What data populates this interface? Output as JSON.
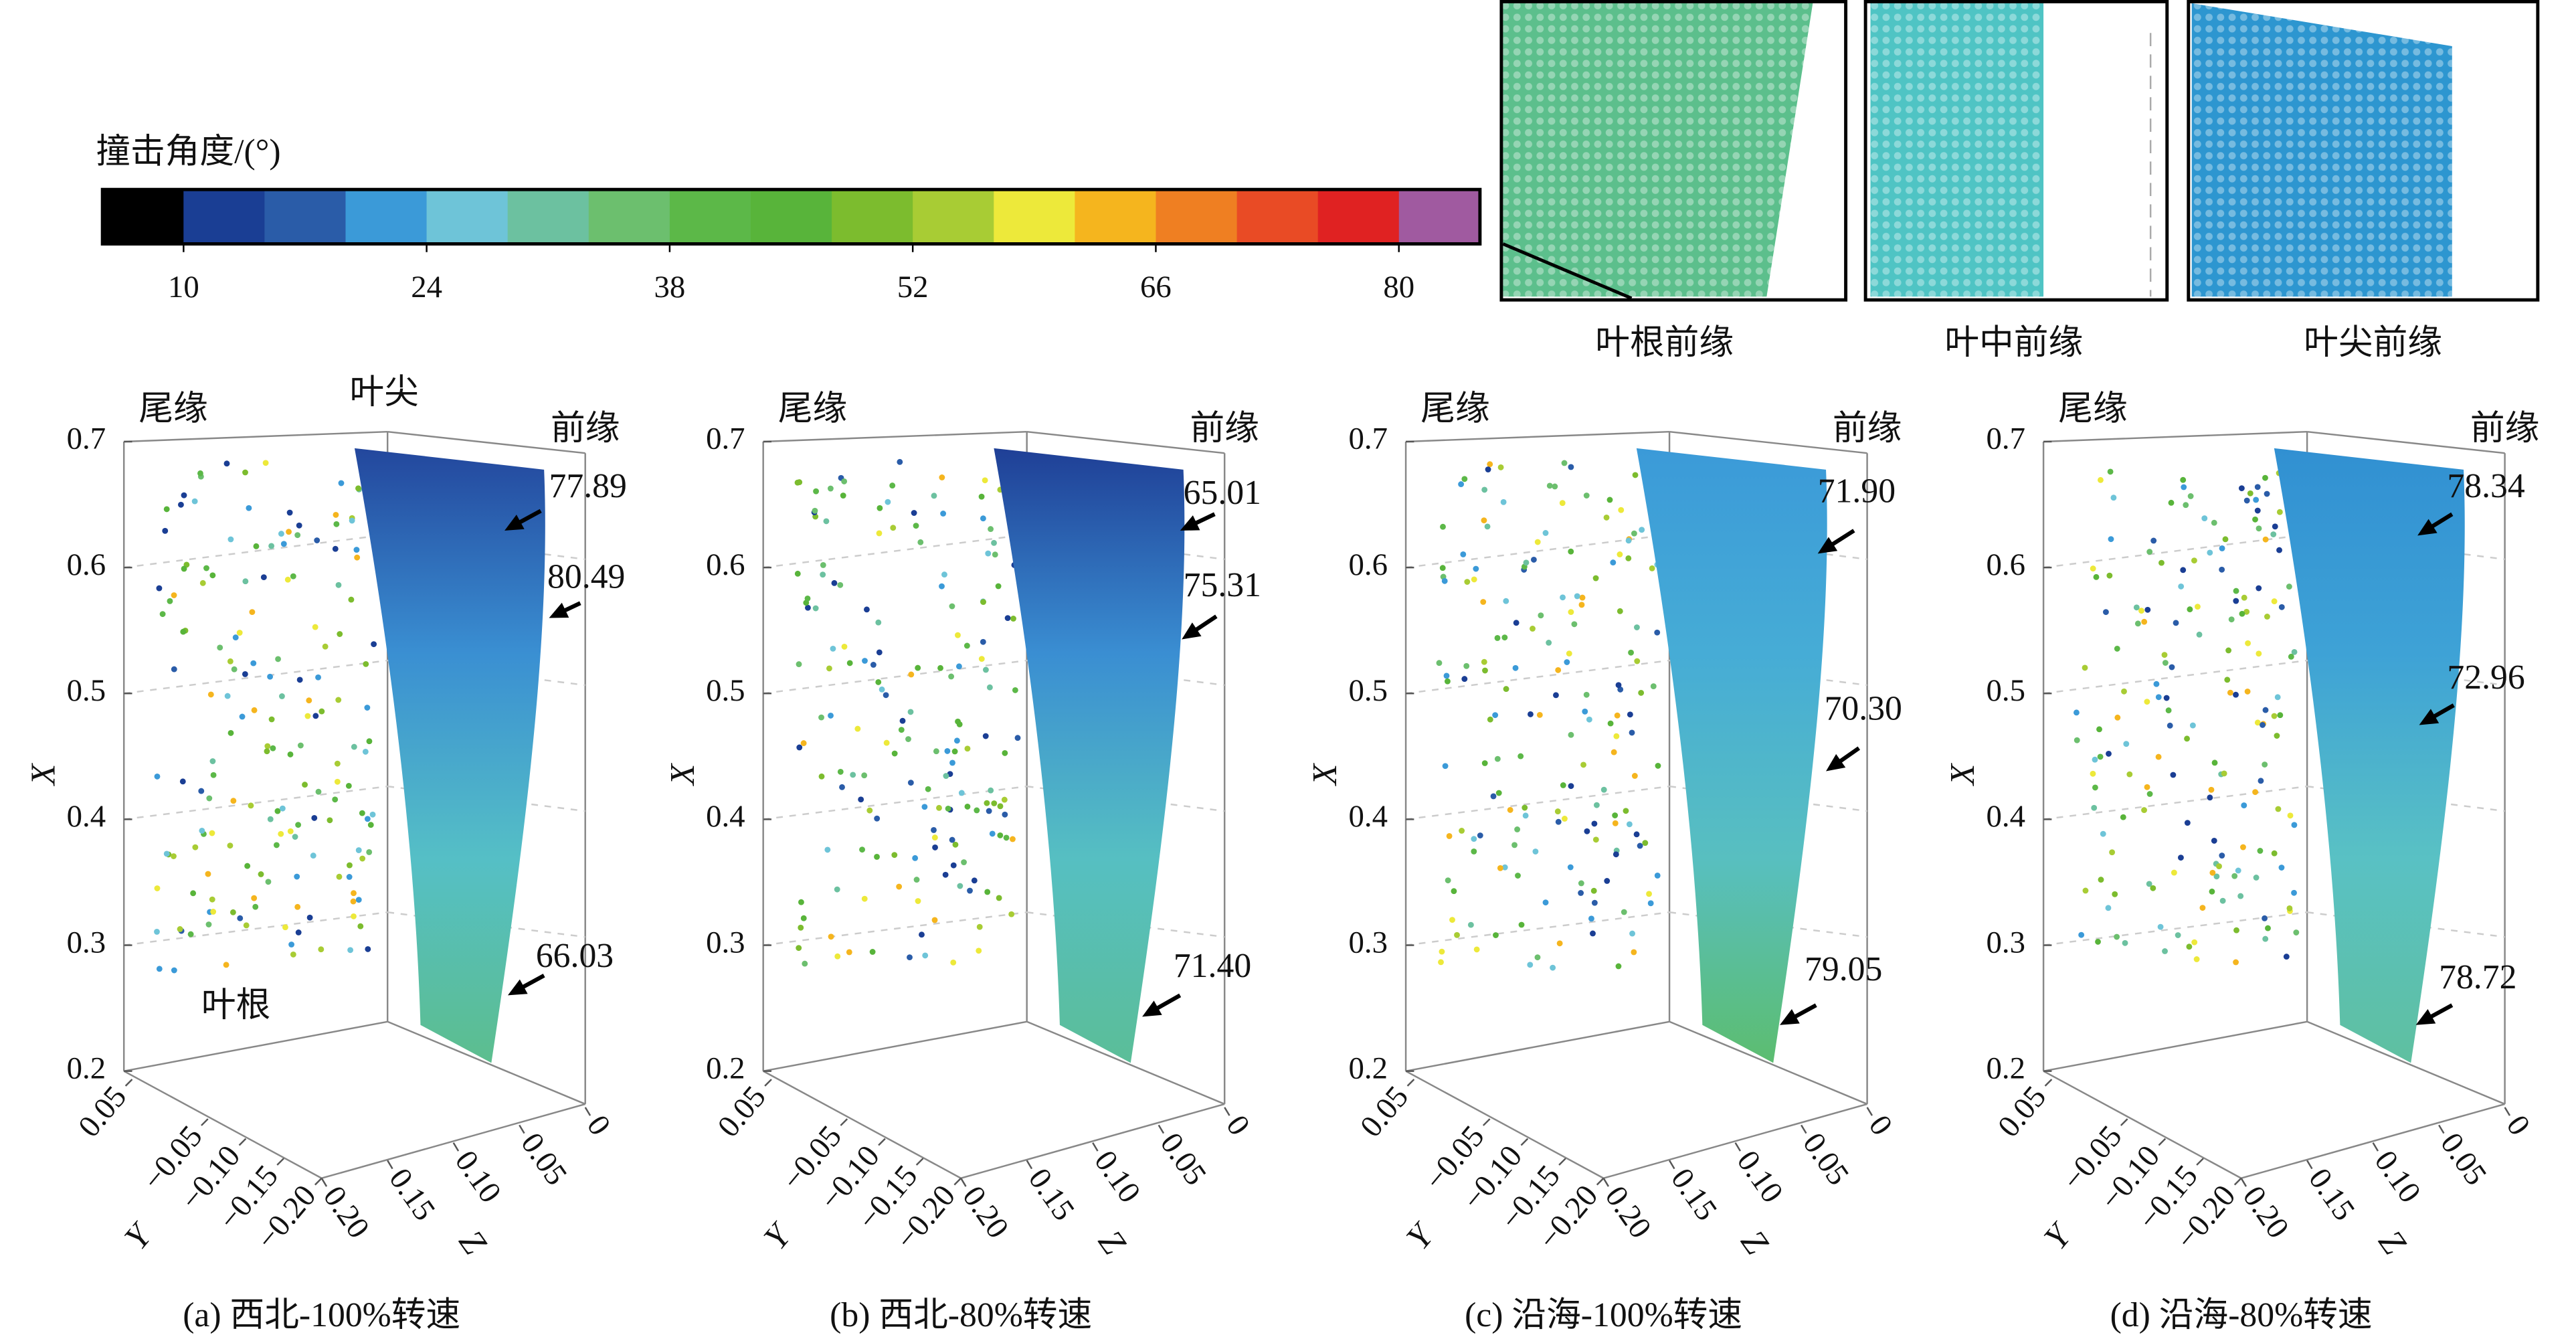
{
  "colorbar": {
    "title": "撞击角度/(°)",
    "lim": [
      5.33,
      84.67
    ],
    "colors": [
      "#000000",
      "#1a3e94",
      "#2a5ca8",
      "#3b9ad8",
      "#6ec4d8",
      "#6cc1a0",
      "#6cbf6e",
      "#5cb848",
      "#58b43a",
      "#7cbc2e",
      "#a8cc34",
      "#ede93a",
      "#f5b51e",
      "#ef7f22",
      "#e94b25",
      "#e02222",
      "#a05aa0"
    ],
    "ticks": [
      10,
      24,
      38,
      52,
      66,
      80
    ]
  },
  "insets": [
    {
      "label": "叶根前缘",
      "color": "#5cbf8c"
    },
    {
      "label": "叶中前缘",
      "color": "#4fc4c4"
    },
    {
      "label": "叶尖前缘",
      "color": "#2d96d0"
    }
  ],
  "axes": {
    "x": {
      "label": "X",
      "lim": [
        0.2,
        0.7
      ],
      "ticks": [
        0.2,
        0.3,
        0.4,
        0.5,
        0.6,
        0.7
      ]
    },
    "y": {
      "label": "Y",
      "lim": [
        0.05,
        -0.2
      ],
      "ticks": [
        0.05,
        {
          "value": -0.05,
          "label": "−0.05"
        },
        {
          "value": -0.1,
          "label": "−0.10"
        },
        {
          "value": -0.15,
          "label": "−0.15"
        },
        {
          "value": -0.2,
          "label": "−0.20"
        }
      ]
    },
    "z": {
      "label": "Z",
      "lim": [
        0.2,
        0
      ],
      "ticks": [
        {
          "value": 0.2,
          "label": "0.20"
        },
        {
          "value": 0.15,
          "label": "0.15"
        },
        {
          "value": 0.1,
          "label": "0.10"
        },
        0.05,
        0
      ]
    }
  },
  "panels": [
    {
      "caption": "(a) 西北-100%转速",
      "labels": {
        "trailing": "尾缘",
        "tip": "叶尖",
        "leading": "前缘",
        "root": "叶根"
      },
      "annotations": [
        "77.89",
        "80.49",
        "66.03"
      ]
    },
    {
      "caption": "(b) 西北-80%转速",
      "labels": {
        "trailing": "尾缘",
        "leading": "前缘"
      },
      "annotations": [
        "65.01",
        "75.31",
        "71.40"
      ]
    },
    {
      "caption": "(c) 沿海-100%转速",
      "labels": {
        "trailing": "尾缘",
        "leading": "前缘"
      },
      "annotations": [
        "71.90",
        "70.30",
        "79.05"
      ]
    },
    {
      "caption": "(d) 沿海-80%转速",
      "labels": {
        "trailing": "尾缘",
        "leading": "前缘"
      },
      "annotations": [
        "78.34",
        "72.96",
        "78.72"
      ]
    }
  ]
}
